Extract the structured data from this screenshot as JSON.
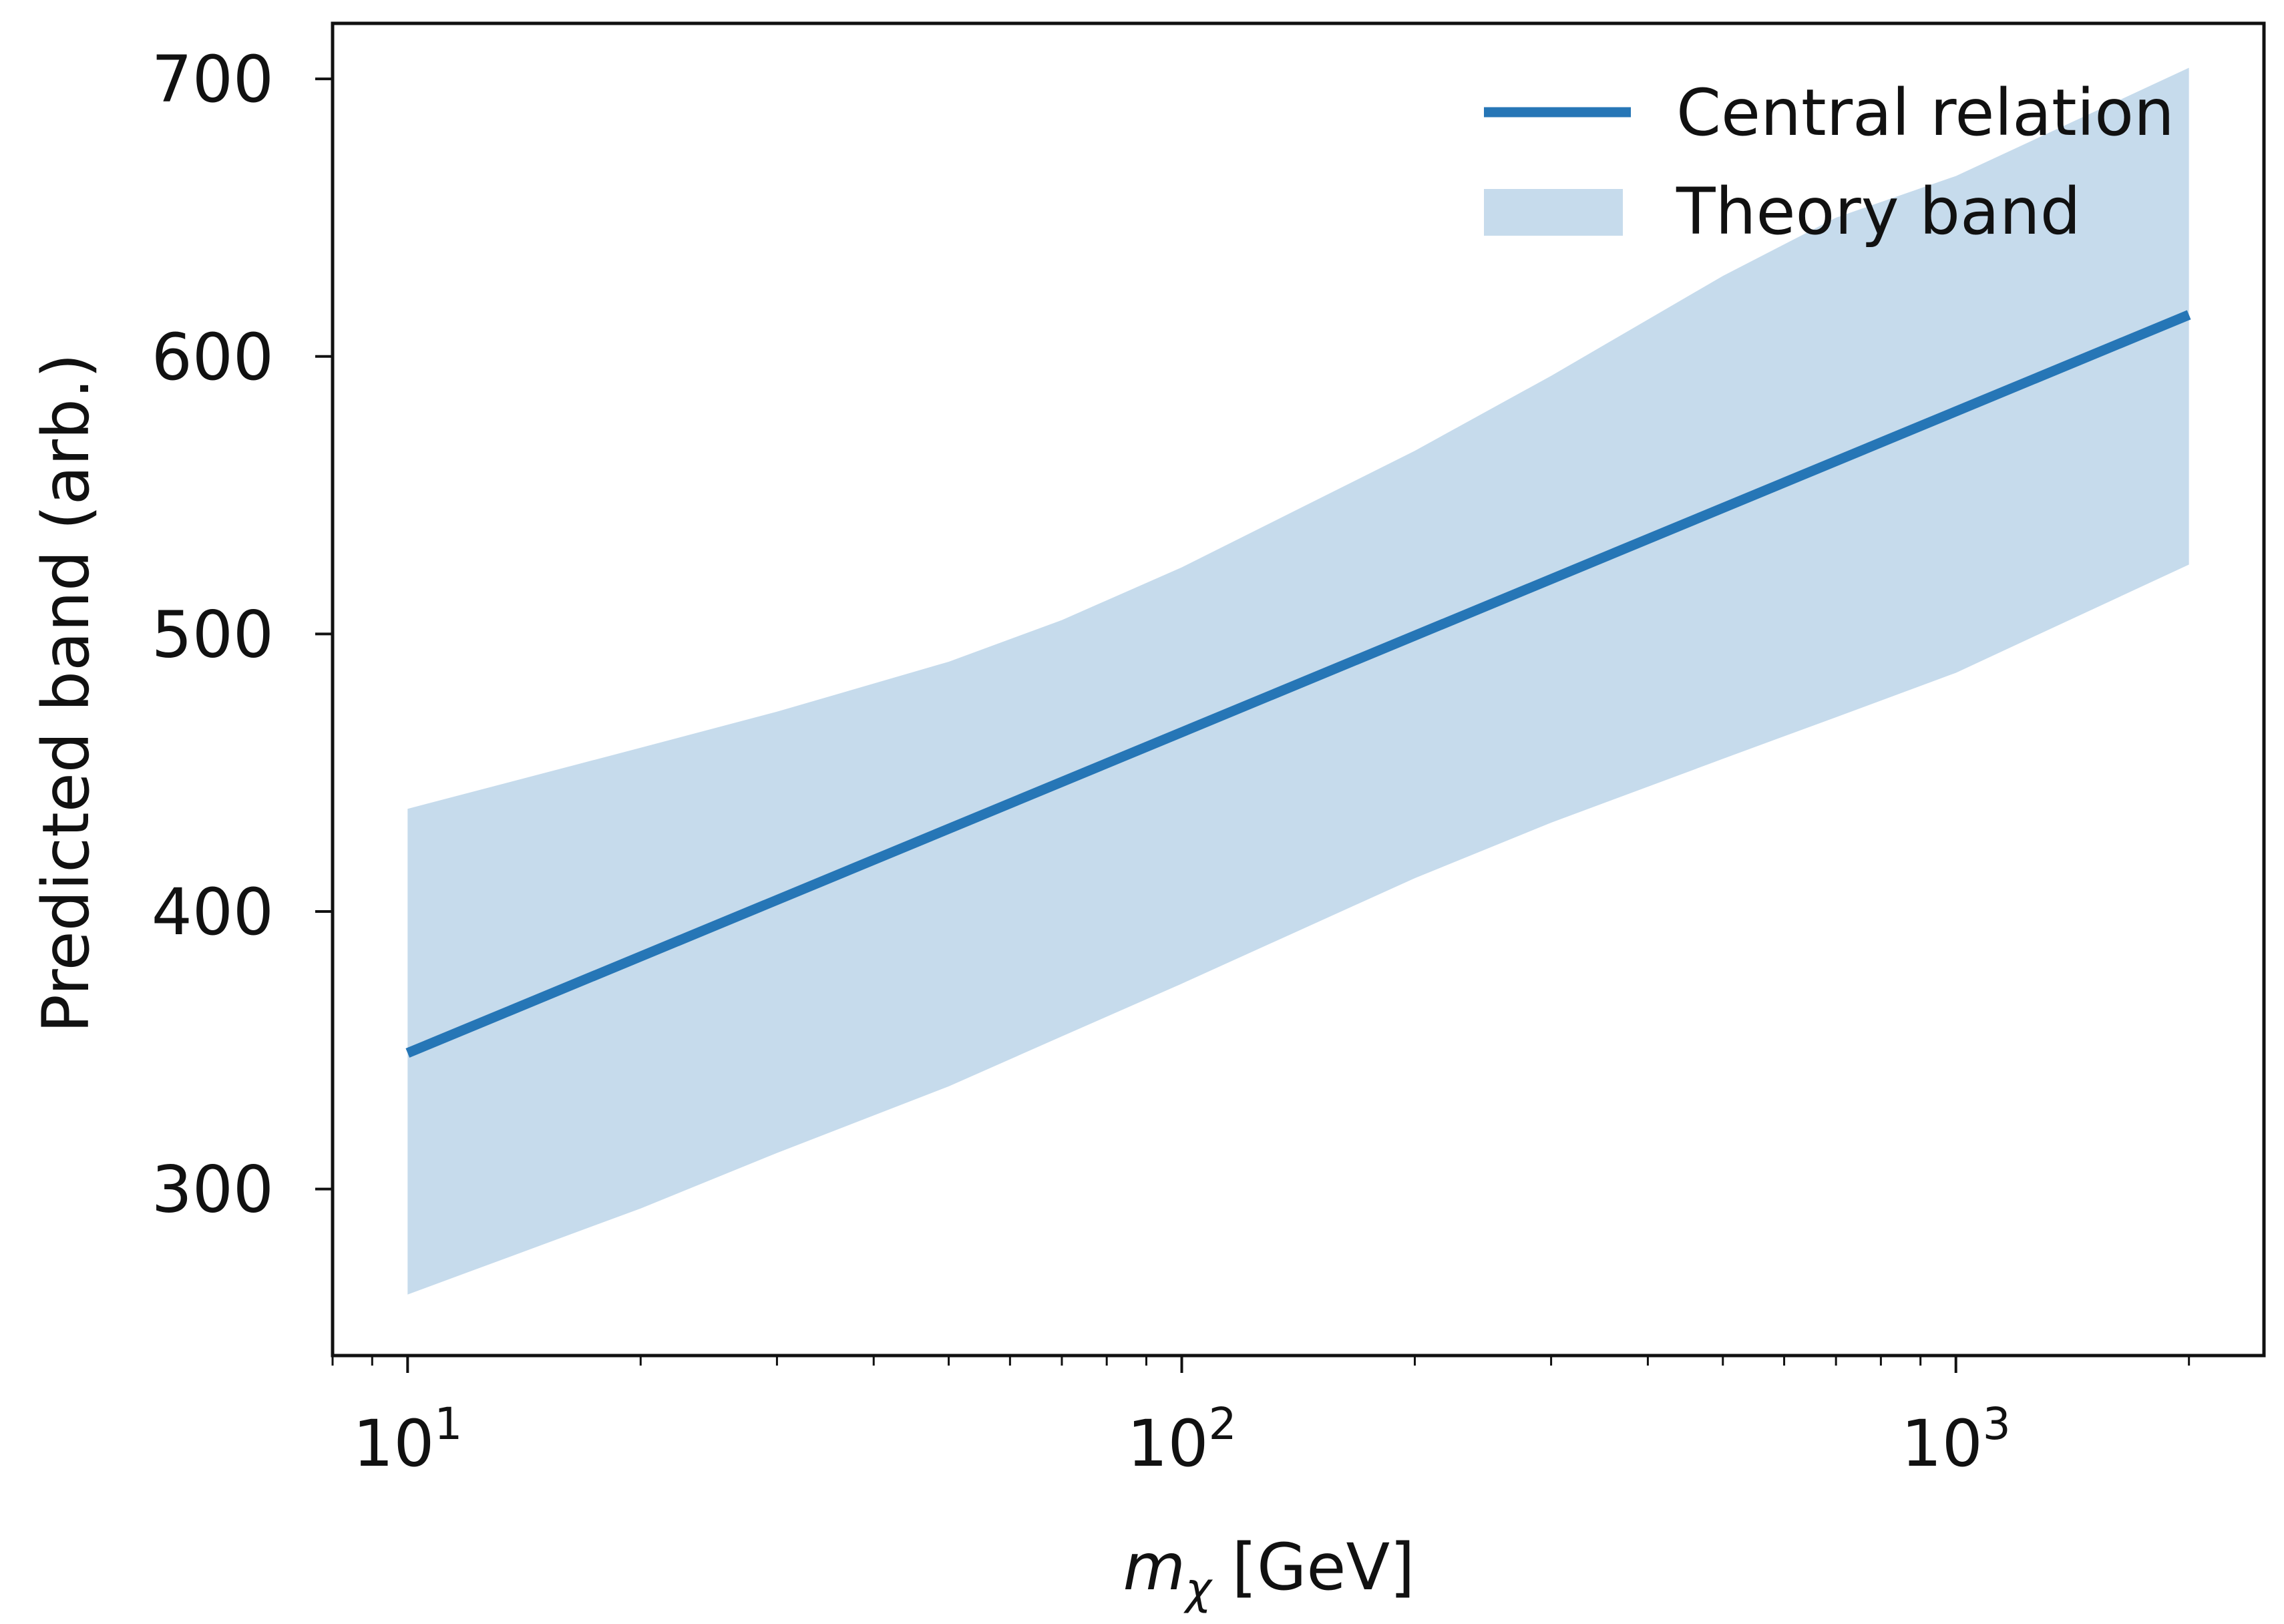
{
  "chart_data": {
    "type": "line",
    "x_scale": "log",
    "xlim": [
      8,
      2500
    ],
    "ylim": [
      240,
      720
    ],
    "grid": false,
    "legend_position": "top-right",
    "xlabel": {
      "italic": "m",
      "subscript": "χ",
      "unit": " [GeV]"
    },
    "ylabel": "Predicted band (arb.)",
    "x_ticks": [
      {
        "value": 10,
        "base": "10",
        "exp": "1"
      },
      {
        "value": 100,
        "base": "10",
        "exp": "2"
      },
      {
        "value": 1000,
        "base": "10",
        "exp": "3"
      }
    ],
    "y_ticks": [
      300,
      400,
      500,
      600,
      700
    ],
    "colors": {
      "line": "#2676b6",
      "band": "#c6dbec",
      "axes": "#111111"
    },
    "series": [
      {
        "name": "Central relation",
        "kind": "line",
        "x": [
          10,
          2000
        ],
        "y": [
          349,
          615
        ]
      },
      {
        "name": "Theory band",
        "kind": "band",
        "x": [
          10,
          20,
          30,
          50,
          70,
          100,
          200,
          300,
          500,
          700,
          1000,
          2000
        ],
        "y_lower": [
          262,
          293,
          313,
          337,
          355,
          374,
          412,
          432,
          455,
          470,
          486,
          525
        ],
        "y_upper": [
          437,
          459,
          472,
          490,
          505,
          524,
          566,
          593,
          629,
          650,
          665,
          704
        ]
      }
    ]
  }
}
